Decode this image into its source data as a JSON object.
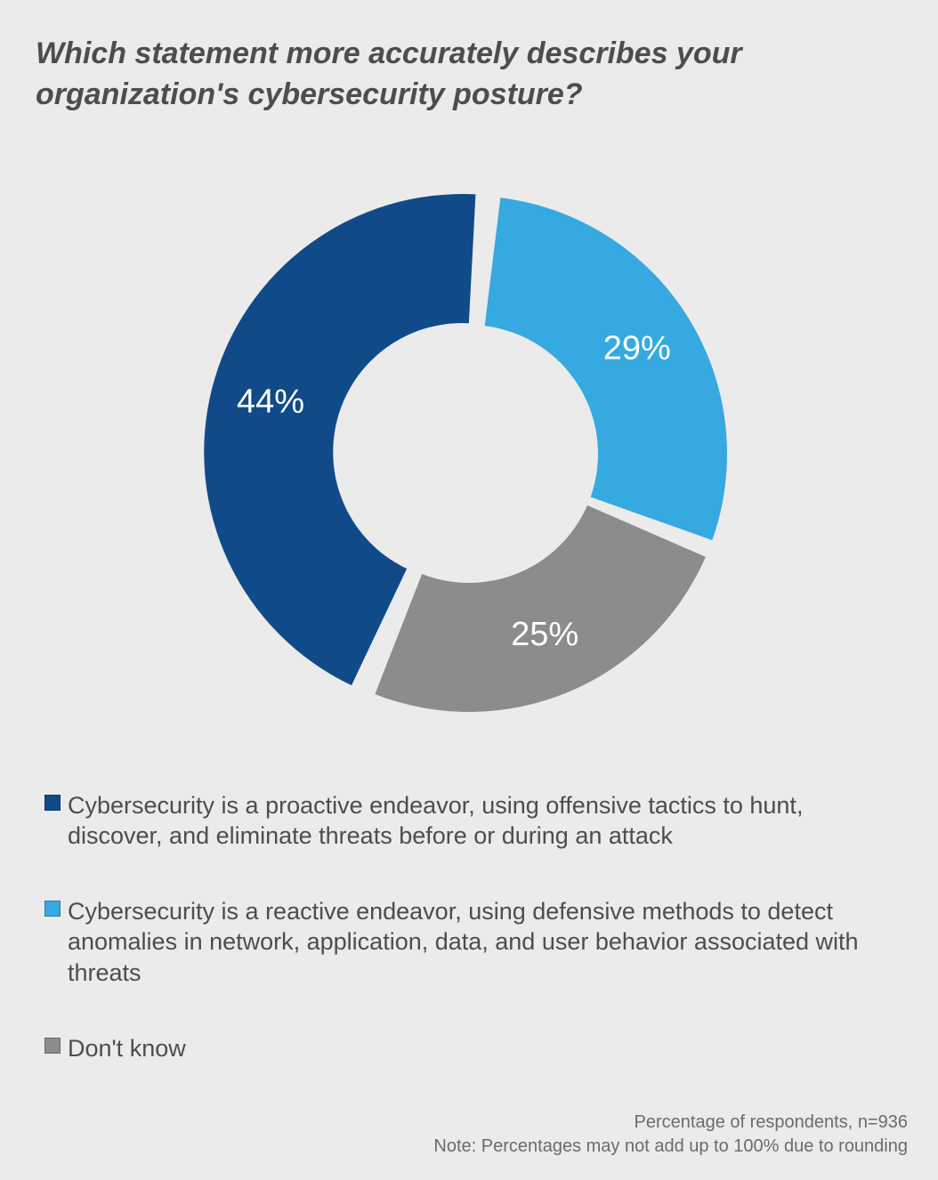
{
  "title": "Which statement more accurately describes your organization's cybersecurity posture?",
  "title_fontsize": 34,
  "chart": {
    "type": "donut",
    "background_color": "#ebebeb",
    "start_angle_deg": 5,
    "direction": "clockwise",
    "gap_deg": 4,
    "outer_radius": 290,
    "inner_radius": 145,
    "label_radius": 222,
    "label_fontsize": 38,
    "label_color": "#ffffff",
    "slices": [
      {
        "key": "reactive",
        "value": 29,
        "label": "29%",
        "color": "#36a9e1"
      },
      {
        "key": "dont_know",
        "value": 25,
        "label": "25%",
        "color": "#8c8c8c"
      },
      {
        "key": "proactive",
        "value": 44,
        "label": "44%",
        "color": "#114a89",
        "explode": 8
      }
    ]
  },
  "legend": {
    "fontsize": 27,
    "text_color": "#4d4d4d",
    "items": [
      {
        "swatch": "#114a89",
        "text": "Cybersecurity is a proactive endeavor, using offensive tactics to hunt, discover, and eliminate threats before or during an attack"
      },
      {
        "swatch": "#36a9e1",
        "text": "Cybersecurity is a reactive endeavor, using defensive methods to detect anomalies in network, application, data, and user behavior associated with threats"
      },
      {
        "swatch": "#8c8c8c",
        "text": "Don't know"
      }
    ]
  },
  "footnote": {
    "line1": "Percentage of respondents, n=936",
    "line2": "Note: Percentages may not add up to 100% due to rounding",
    "fontsize": 20,
    "color": "#6b6b6b"
  }
}
